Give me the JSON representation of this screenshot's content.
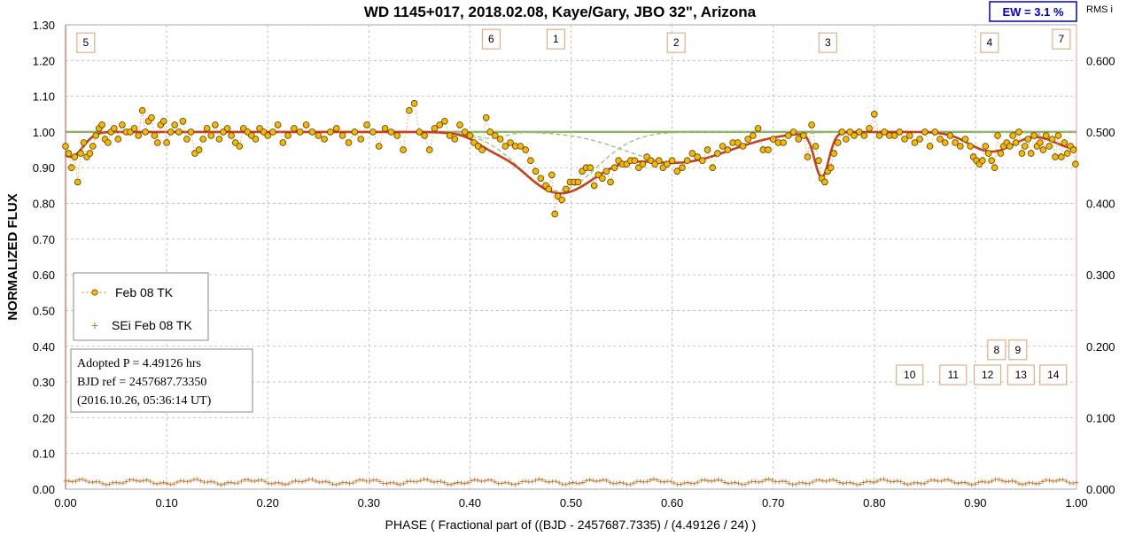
{
  "chart_data": {
    "type": "scatter",
    "title": "WD 1145+017, 2018.02.08,  Kaye/Gary,  JBO 32\", Arizona",
    "ew_label": "EW =  3.1 %",
    "right_axis_label": "RMS i",
    "xlabel": "PHASE  ( Fractional part of ((BJD - 2457687.7335)  / (4.49126 / 24) )",
    "ylabel": "NORMALIZED  FLUX",
    "xlim": [
      0.0,
      1.0
    ],
    "ylim": [
      0.0,
      1.3
    ],
    "y2lim": [
      0.0,
      0.65
    ],
    "x_ticks": [
      "0.00",
      "0.10",
      "0.20",
      "0.30",
      "0.40",
      "0.50",
      "0.60",
      "0.70",
      "0.80",
      "0.90",
      "1.00"
    ],
    "y_ticks": [
      "0.00",
      "0.10",
      "0.20",
      "0.30",
      "0.40",
      "0.50",
      "0.60",
      "0.70",
      "0.80",
      "0.90",
      "1.00",
      "1.10",
      "1.20",
      "1.30"
    ],
    "y2_ticks": [
      "0.000",
      "0.100",
      "0.200",
      "0.300",
      "0.400",
      "0.500",
      "0.600"
    ],
    "grid": true,
    "legend": {
      "position": "left-middle",
      "entries": [
        {
          "name": "Feb 08 TK",
          "color": "#f5b800"
        },
        {
          "name": "SEi Feb 08 TK",
          "color": "#c07830"
        }
      ]
    },
    "note_lines": [
      "Adopted P = 4.49126 hrs",
      "BJD ref = 2457687.73350",
      "(2016.10.26, 05:36:14 UT)"
    ],
    "dip_markers": [
      {
        "label": "5",
        "x": 0.02,
        "y": 1.25
      },
      {
        "label": "6",
        "x": 0.421,
        "y": 1.26
      },
      {
        "label": "1",
        "x": 0.485,
        "y": 1.26
      },
      {
        "label": "2",
        "x": 0.604,
        "y": 1.25
      },
      {
        "label": "3",
        "x": 0.754,
        "y": 1.25
      },
      {
        "label": "4",
        "x": 0.914,
        "y": 1.25
      },
      {
        "label": "7",
        "x": 0.985,
        "y": 1.26
      },
      {
        "label": "8",
        "x": 0.921,
        "y": 0.39
      },
      {
        "label": "9",
        "x": 0.942,
        "y": 0.39
      },
      {
        "label": "10",
        "x": 0.835,
        "y": 0.32
      },
      {
        "label": "11",
        "x": 0.878,
        "y": 0.32
      },
      {
        "label": "12",
        "x": 0.912,
        "y": 0.32
      },
      {
        "label": "13",
        "x": 0.945,
        "y": 0.32
      },
      {
        "label": "14",
        "x": 0.977,
        "y": 0.32
      }
    ],
    "model_dips": [
      {
        "center": 0.487,
        "depth": 0.165,
        "width": 0.038
      },
      {
        "center": 0.605,
        "depth": 0.085,
        "width": 0.052
      },
      {
        "center": 0.748,
        "depth": 0.125,
        "width": 0.007
      },
      {
        "center": 0.916,
        "depth": 0.055,
        "width": 0.022
      },
      {
        "center": 0.998,
        "depth": 0.045,
        "width": 0.02
      },
      {
        "center": 0.42,
        "depth": 0.018,
        "width": 0.015
      },
      {
        "center": 0.005,
        "depth": 0.07,
        "width": 0.012
      }
    ],
    "series": [
      {
        "name": "Feb 08 TK",
        "axis": "left",
        "color": "#f5b800",
        "points": [
          [
            0.0,
            0.96
          ],
          [
            0.003,
            0.94
          ],
          [
            0.006,
            0.9
          ],
          [
            0.009,
            0.93
          ],
          [
            0.012,
            0.86
          ],
          [
            0.015,
            0.94
          ],
          [
            0.018,
            0.97
          ],
          [
            0.021,
            0.93
          ],
          [
            0.024,
            0.94
          ],
          [
            0.027,
            0.96
          ],
          [
            0.03,
            0.99
          ],
          [
            0.033,
            1.01
          ],
          [
            0.036,
            1.02
          ],
          [
            0.039,
            0.98
          ],
          [
            0.042,
            0.97
          ],
          [
            0.045,
            1.0
          ],
          [
            0.048,
            1.01
          ],
          [
            0.052,
            0.98
          ],
          [
            0.056,
            1.02
          ],
          [
            0.06,
            1.0
          ],
          [
            0.064,
            1.0
          ],
          [
            0.068,
            1.01
          ],
          [
            0.072,
            0.99
          ],
          [
            0.076,
            1.06
          ],
          [
            0.079,
            1.0
          ],
          [
            0.082,
            1.03
          ],
          [
            0.085,
            1.04
          ],
          [
            0.088,
            0.99
          ],
          [
            0.091,
            0.97
          ],
          [
            0.094,
            1.02
          ],
          [
            0.097,
            1.03
          ],
          [
            0.1,
            0.97
          ],
          [
            0.104,
            1.0
          ],
          [
            0.108,
            1.02
          ],
          [
            0.112,
            1.0
          ],
          [
            0.116,
            1.03
          ],
          [
            0.12,
            0.98
          ],
          [
            0.124,
            1.0
          ],
          [
            0.128,
            0.94
          ],
          [
            0.132,
            0.95
          ],
          [
            0.136,
            0.98
          ],
          [
            0.14,
            1.01
          ],
          [
            0.144,
            0.99
          ],
          [
            0.148,
            1.02
          ],
          [
            0.152,
            0.98
          ],
          [
            0.156,
            1.0
          ],
          [
            0.16,
            1.01
          ],
          [
            0.164,
            0.99
          ],
          [
            0.168,
            0.97
          ],
          [
            0.172,
            0.96
          ],
          [
            0.176,
            1.01
          ],
          [
            0.18,
            1.0
          ],
          [
            0.184,
            0.99
          ],
          [
            0.188,
            0.98
          ],
          [
            0.192,
            1.01
          ],
          [
            0.196,
            1.0
          ],
          [
            0.2,
            0.99
          ],
          [
            0.205,
            1.0
          ],
          [
            0.21,
            1.02
          ],
          [
            0.215,
            0.97
          ],
          [
            0.22,
            0.99
          ],
          [
            0.226,
            1.01
          ],
          [
            0.232,
            1.0
          ],
          [
            0.238,
            1.02
          ],
          [
            0.244,
            1.0
          ],
          [
            0.25,
            0.99
          ],
          [
            0.256,
            0.98
          ],
          [
            0.262,
            1.0
          ],
          [
            0.268,
            1.01
          ],
          [
            0.274,
            0.99
          ],
          [
            0.28,
            0.97
          ],
          [
            0.286,
            1.0
          ],
          [
            0.292,
            0.98
          ],
          [
            0.298,
            1.02
          ],
          [
            0.304,
            1.0
          ],
          [
            0.31,
            0.96
          ],
          [
            0.316,
            1.01
          ],
          [
            0.322,
            1.0
          ],
          [
            0.328,
            0.99
          ],
          [
            0.334,
            0.95
          ],
          [
            0.34,
            1.06
          ],
          [
            0.345,
            1.08
          ],
          [
            0.35,
            1.0
          ],
          [
            0.355,
            0.99
          ],
          [
            0.36,
            0.95
          ],
          [
            0.365,
            1.01
          ],
          [
            0.37,
            1.02
          ],
          [
            0.375,
            1.03
          ],
          [
            0.38,
            0.99
          ],
          [
            0.385,
            0.98
          ],
          [
            0.39,
            1.02
          ],
          [
            0.395,
            1.0
          ],
          [
            0.4,
            0.99
          ],
          [
            0.404,
            0.97
          ],
          [
            0.408,
            0.96
          ],
          [
            0.412,
            0.95
          ],
          [
            0.416,
            1.04
          ],
          [
            0.42,
            1.0
          ],
          [
            0.425,
            0.99
          ],
          [
            0.43,
            0.98
          ],
          [
            0.435,
            0.96
          ],
          [
            0.44,
            0.97
          ],
          [
            0.445,
            0.96
          ],
          [
            0.45,
            0.96
          ],
          [
            0.455,
            0.95
          ],
          [
            0.46,
            0.92
          ],
          [
            0.465,
            0.89
          ],
          [
            0.47,
            0.87
          ],
          [
            0.475,
            0.85
          ],
          [
            0.478,
            0.84
          ],
          [
            0.481,
            0.88
          ],
          [
            0.484,
            0.77
          ],
          [
            0.487,
            0.82
          ],
          [
            0.491,
            0.81
          ],
          [
            0.495,
            0.84
          ],
          [
            0.499,
            0.86
          ],
          [
            0.503,
            0.86
          ],
          [
            0.507,
            0.86
          ],
          [
            0.511,
            0.89
          ],
          [
            0.515,
            0.9
          ],
          [
            0.519,
            0.9
          ],
          [
            0.523,
            0.85
          ],
          [
            0.527,
            0.88
          ],
          [
            0.531,
            0.87
          ],
          [
            0.535,
            0.89
          ],
          [
            0.539,
            0.86
          ],
          [
            0.543,
            0.9
          ],
          [
            0.547,
            0.92
          ],
          [
            0.551,
            0.91
          ],
          [
            0.555,
            0.91
          ],
          [
            0.559,
            0.92
          ],
          [
            0.563,
            0.92
          ],
          [
            0.567,
            0.9
          ],
          [
            0.571,
            0.91
          ],
          [
            0.575,
            0.93
          ],
          [
            0.579,
            0.92
          ],
          [
            0.583,
            0.91
          ],
          [
            0.587,
            0.92
          ],
          [
            0.591,
            0.9
          ],
          [
            0.595,
            0.91
          ],
          [
            0.6,
            0.92
          ],
          [
            0.605,
            0.89
          ],
          [
            0.61,
            0.9
          ],
          [
            0.615,
            0.92
          ],
          [
            0.62,
            0.94
          ],
          [
            0.625,
            0.93
          ],
          [
            0.63,
            0.92
          ],
          [
            0.635,
            0.95
          ],
          [
            0.64,
            0.9
          ],
          [
            0.645,
            0.94
          ],
          [
            0.65,
            0.96
          ],
          [
            0.655,
            0.95
          ],
          [
            0.66,
            0.97
          ],
          [
            0.665,
            0.97
          ],
          [
            0.67,
            0.96
          ],
          [
            0.675,
            0.98
          ],
          [
            0.68,
            0.99
          ],
          [
            0.685,
            1.01
          ],
          [
            0.69,
            0.95
          ],
          [
            0.695,
            0.95
          ],
          [
            0.7,
            0.98
          ],
          [
            0.705,
            0.97
          ],
          [
            0.71,
            0.97
          ],
          [
            0.715,
            0.99
          ],
          [
            0.72,
            1.0
          ],
          [
            0.725,
            0.98
          ],
          [
            0.73,
            0.99
          ],
          [
            0.734,
            0.93
          ],
          [
            0.738,
            1.02
          ],
          [
            0.742,
            0.96
          ],
          [
            0.745,
            0.92
          ],
          [
            0.748,
            0.87
          ],
          [
            0.751,
            0.86
          ],
          [
            0.754,
            0.89
          ],
          [
            0.757,
            0.9
          ],
          [
            0.76,
            0.94
          ],
          [
            0.764,
            0.97
          ],
          [
            0.768,
            1.0
          ],
          [
            0.772,
            0.98
          ],
          [
            0.776,
            1.0
          ],
          [
            0.78,
            0.99
          ],
          [
            0.785,
            1.0
          ],
          [
            0.79,
            0.99
          ],
          [
            0.795,
            1.01
          ],
          [
            0.8,
            1.05
          ],
          [
            0.805,
            0.99
          ],
          [
            0.81,
            1.0
          ],
          [
            0.815,
            0.99
          ],
          [
            0.82,
            0.99
          ],
          [
            0.825,
            1.0
          ],
          [
            0.83,
            0.98
          ],
          [
            0.835,
            0.99
          ],
          [
            0.84,
            0.97
          ],
          [
            0.845,
            0.98
          ],
          [
            0.85,
            1.0
          ],
          [
            0.855,
            0.96
          ],
          [
            0.86,
            1.0
          ],
          [
            0.865,
            0.98
          ],
          [
            0.87,
            0.97
          ],
          [
            0.875,
            0.99
          ],
          [
            0.88,
            0.97
          ],
          [
            0.885,
            0.96
          ],
          [
            0.89,
            0.98
          ],
          [
            0.895,
            0.96
          ],
          [
            0.898,
            0.93
          ],
          [
            0.901,
            0.92
          ],
          [
            0.904,
            0.91
          ],
          [
            0.907,
            0.92
          ],
          [
            0.91,
            0.96
          ],
          [
            0.913,
            0.94
          ],
          [
            0.916,
            0.92
          ],
          [
            0.919,
            0.9
          ],
          [
            0.922,
            0.99
          ],
          [
            0.925,
            0.94
          ],
          [
            0.928,
            0.96
          ],
          [
            0.931,
            0.97
          ],
          [
            0.934,
            0.96
          ],
          [
            0.937,
            0.99
          ],
          [
            0.94,
            0.97
          ],
          [
            0.943,
            1.0
          ],
          [
            0.946,
            0.94
          ],
          [
            0.949,
            0.96
          ],
          [
            0.952,
            0.98
          ],
          [
            0.955,
            0.94
          ],
          [
            0.958,
            0.99
          ],
          [
            0.961,
            0.96
          ],
          [
            0.964,
            0.97
          ],
          [
            0.967,
            0.95
          ],
          [
            0.97,
            0.99
          ],
          [
            0.973,
            0.96
          ],
          [
            0.976,
            0.98
          ],
          [
            0.979,
            0.93
          ],
          [
            0.982,
            0.99
          ],
          [
            0.985,
            0.93
          ],
          [
            0.988,
            0.97
          ],
          [
            0.991,
            0.94
          ],
          [
            0.994,
            0.96
          ],
          [
            0.997,
            0.95
          ],
          [
            0.999,
            0.91
          ]
        ]
      },
      {
        "name": "SEi Feb 08 TK",
        "axis": "right",
        "color": "#c07830",
        "x_start": 0.0,
        "x_end": 1.0,
        "n_points": 300,
        "typical_value": 0.01,
        "range": [
          0.006,
          0.016
        ]
      }
    ]
  }
}
